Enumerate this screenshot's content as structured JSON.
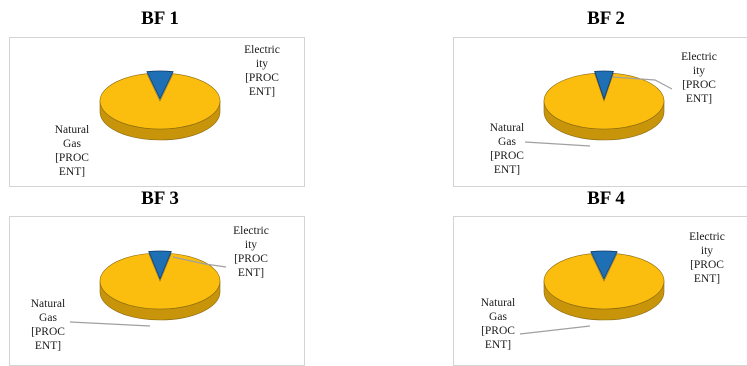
{
  "charts": [
    {
      "title": "BF 1",
      "labels": {
        "elec": [
          "Electric",
          "ity",
          "[PROC",
          "ENT]"
        ],
        "gas": [
          "Natural",
          "Gas",
          "[PROC",
          "ENT]"
        ]
      }
    },
    {
      "title": "BF 2",
      "labels": {
        "elec": [
          "Electric",
          "ity",
          "[PROC",
          "ENT]"
        ],
        "gas": [
          "Natural",
          "Gas",
          "[PROC",
          "ENT]"
        ]
      }
    },
    {
      "title": "BF 3",
      "labels": {
        "elec": [
          "Electric",
          "ity",
          "[PROC",
          "ENT]"
        ],
        "gas": [
          "Natural",
          "Gas",
          "[PROC",
          "ENT]"
        ]
      }
    },
    {
      "title": "BF 4",
      "labels": {
        "elec": [
          "Electric",
          "ity",
          "[PROC",
          "ENT]"
        ],
        "gas": [
          "Natural",
          "Gas",
          "[PROC",
          "ENT]"
        ]
      }
    }
  ],
  "colors": {
    "electricity": "#1f6fb5",
    "natural_gas": "#fbbd0e",
    "natural_gas_side": "#c8940a"
  },
  "chart_data": [
    {
      "type": "pie",
      "title": "BF 1",
      "categories": [
        "Electricity",
        "Natural Gas"
      ],
      "values": [
        7,
        93
      ],
      "style": "3d"
    },
    {
      "type": "pie",
      "title": "BF 2",
      "categories": [
        "Electricity",
        "Natural Gas"
      ],
      "values": [
        5,
        95
      ],
      "style": "3d"
    },
    {
      "type": "pie",
      "title": "BF 3",
      "categories": [
        "Electricity",
        "Natural Gas"
      ],
      "values": [
        6,
        94
      ],
      "style": "3d"
    },
    {
      "type": "pie",
      "title": "BF 4",
      "categories": [
        "Electricity",
        "Natural Gas"
      ],
      "values": [
        7,
        93
      ],
      "style": "3d"
    }
  ]
}
